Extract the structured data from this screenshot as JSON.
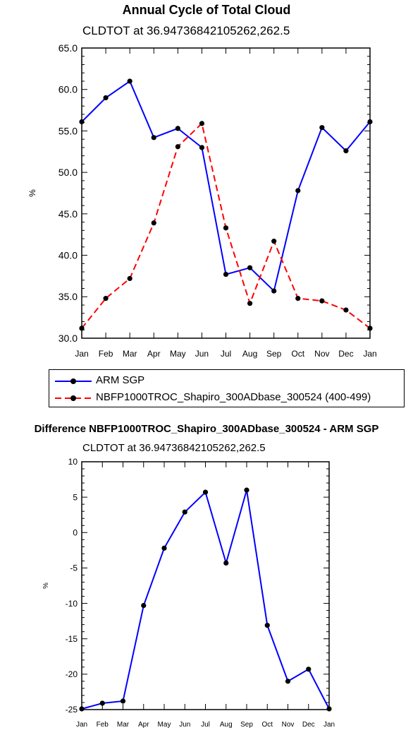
{
  "chart_data": [
    {
      "type": "line",
      "title": "Annual Cycle of Total Cloud",
      "subtitle": "CLDTOT at 36.94736842105262,262.5",
      "xlabel": "",
      "ylabel": "%",
      "ylim": [
        30.0,
        65.0
      ],
      "yticks": [
        "30.0",
        "35.0",
        "40.0",
        "45.0",
        "50.0",
        "55.0",
        "60.0",
        "65.0"
      ],
      "categories": [
        "Jan",
        "Feb",
        "Mar",
        "Apr",
        "May",
        "Jun",
        "Jul",
        "Aug",
        "Sep",
        "Oct",
        "Nov",
        "Dec",
        "Jan"
      ],
      "legend_placement": "bottom",
      "series": [
        {
          "name": "ARM SGP",
          "color": "#0000ff",
          "style": "solid",
          "values": [
            56.1,
            59.0,
            61.0,
            54.2,
            55.3,
            53.0,
            37.7,
            38.5,
            35.7,
            47.8,
            55.4,
            52.6,
            56.1
          ]
        },
        {
          "name": "NBFP1000TROC_Shapiro_300ADbase_300524 (400-499)",
          "color": "#ff0000",
          "style": "dashed",
          "values": [
            31.2,
            34.8,
            37.2,
            43.9,
            53.1,
            55.9,
            43.3,
            34.2,
            41.7,
            34.8,
            34.5,
            33.4,
            31.2
          ]
        }
      ]
    },
    {
      "type": "line",
      "title": "Difference NBFP1000TROC_Shapiro_300ADbase_300524 - ARM SGP",
      "subtitle": "CLDTOT at 36.94736842105262,262.5",
      "xlabel": "",
      "ylabel": "%",
      "ylim": [
        -25,
        10
      ],
      "yticks": [
        "-25",
        "-20",
        "-15",
        "-10",
        "-5",
        "0",
        "5",
        "10"
      ],
      "categories": [
        "Jan",
        "Feb",
        "Mar",
        "Apr",
        "May",
        "Jun",
        "Jul",
        "Aug",
        "Sep",
        "Oct",
        "Nov",
        "Dec",
        "Jan"
      ],
      "series": [
        {
          "color": "#0000ff",
          "style": "solid",
          "values": [
            -24.9,
            -24.1,
            -23.8,
            -10.3,
            -2.2,
            2.9,
            5.7,
            -4.3,
            6.0,
            -13.1,
            -21.0,
            -19.3,
            -24.9
          ]
        }
      ]
    }
  ]
}
